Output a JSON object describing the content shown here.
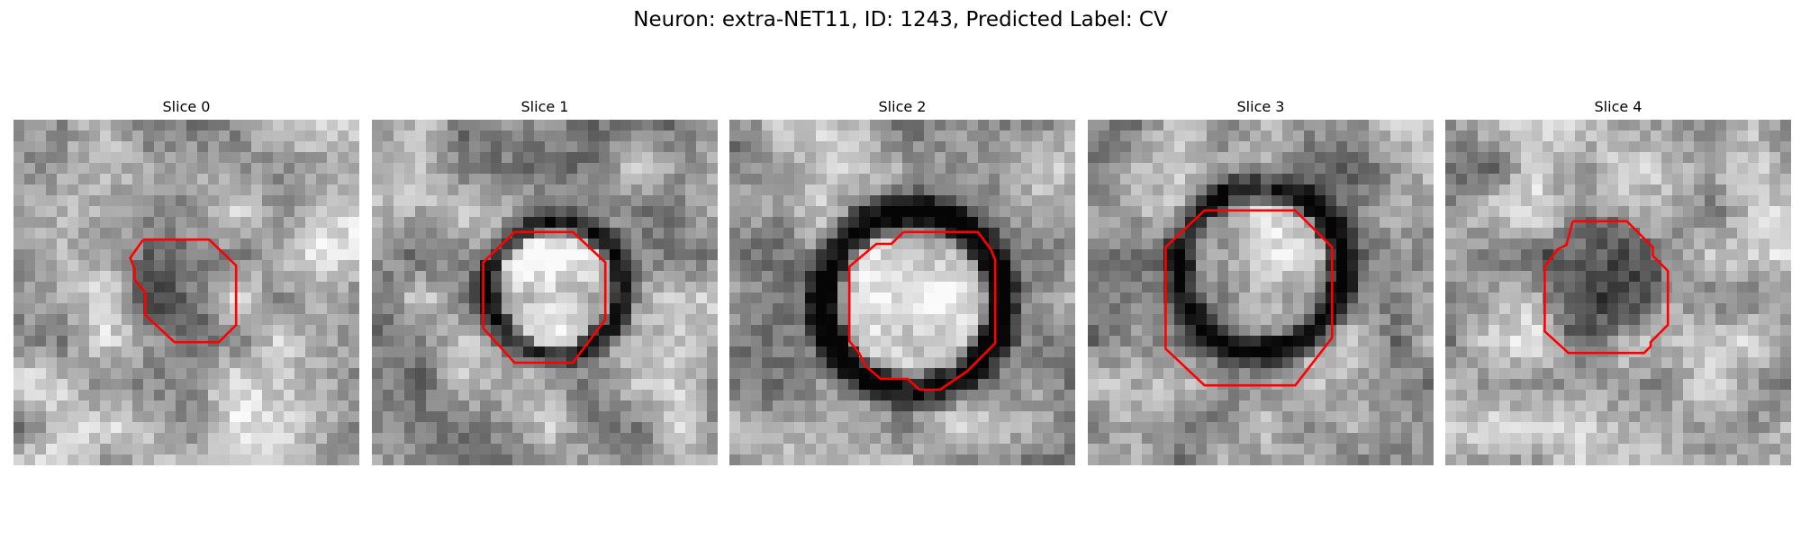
{
  "figure": {
    "title": "Neuron: extra-NET11, ID: 1243, Predicted Label: CV"
  },
  "contour_color": "#ff0000",
  "panels": [
    {
      "title": "Slice 0",
      "image": "grayscale microscopy slice with a small dark cell body outlined by a red polygon contour"
    },
    {
      "title": "Slice 1",
      "image": "grayscale microscopy slice with a bright cell interior surrounded by a dark ring, red polygon contour"
    },
    {
      "title": "Slice 2",
      "image": "grayscale microscopy slice with a large bright cell interior surrounded by a thick dark ring, red polygon contour"
    },
    {
      "title": "Slice 3",
      "image": "grayscale microscopy slice with a bright cell interior and dark ring, large octagonal red contour"
    },
    {
      "title": "Slice 4",
      "image": "grayscale microscopy slice with a dark cell body, red polygon contour"
    }
  ]
}
